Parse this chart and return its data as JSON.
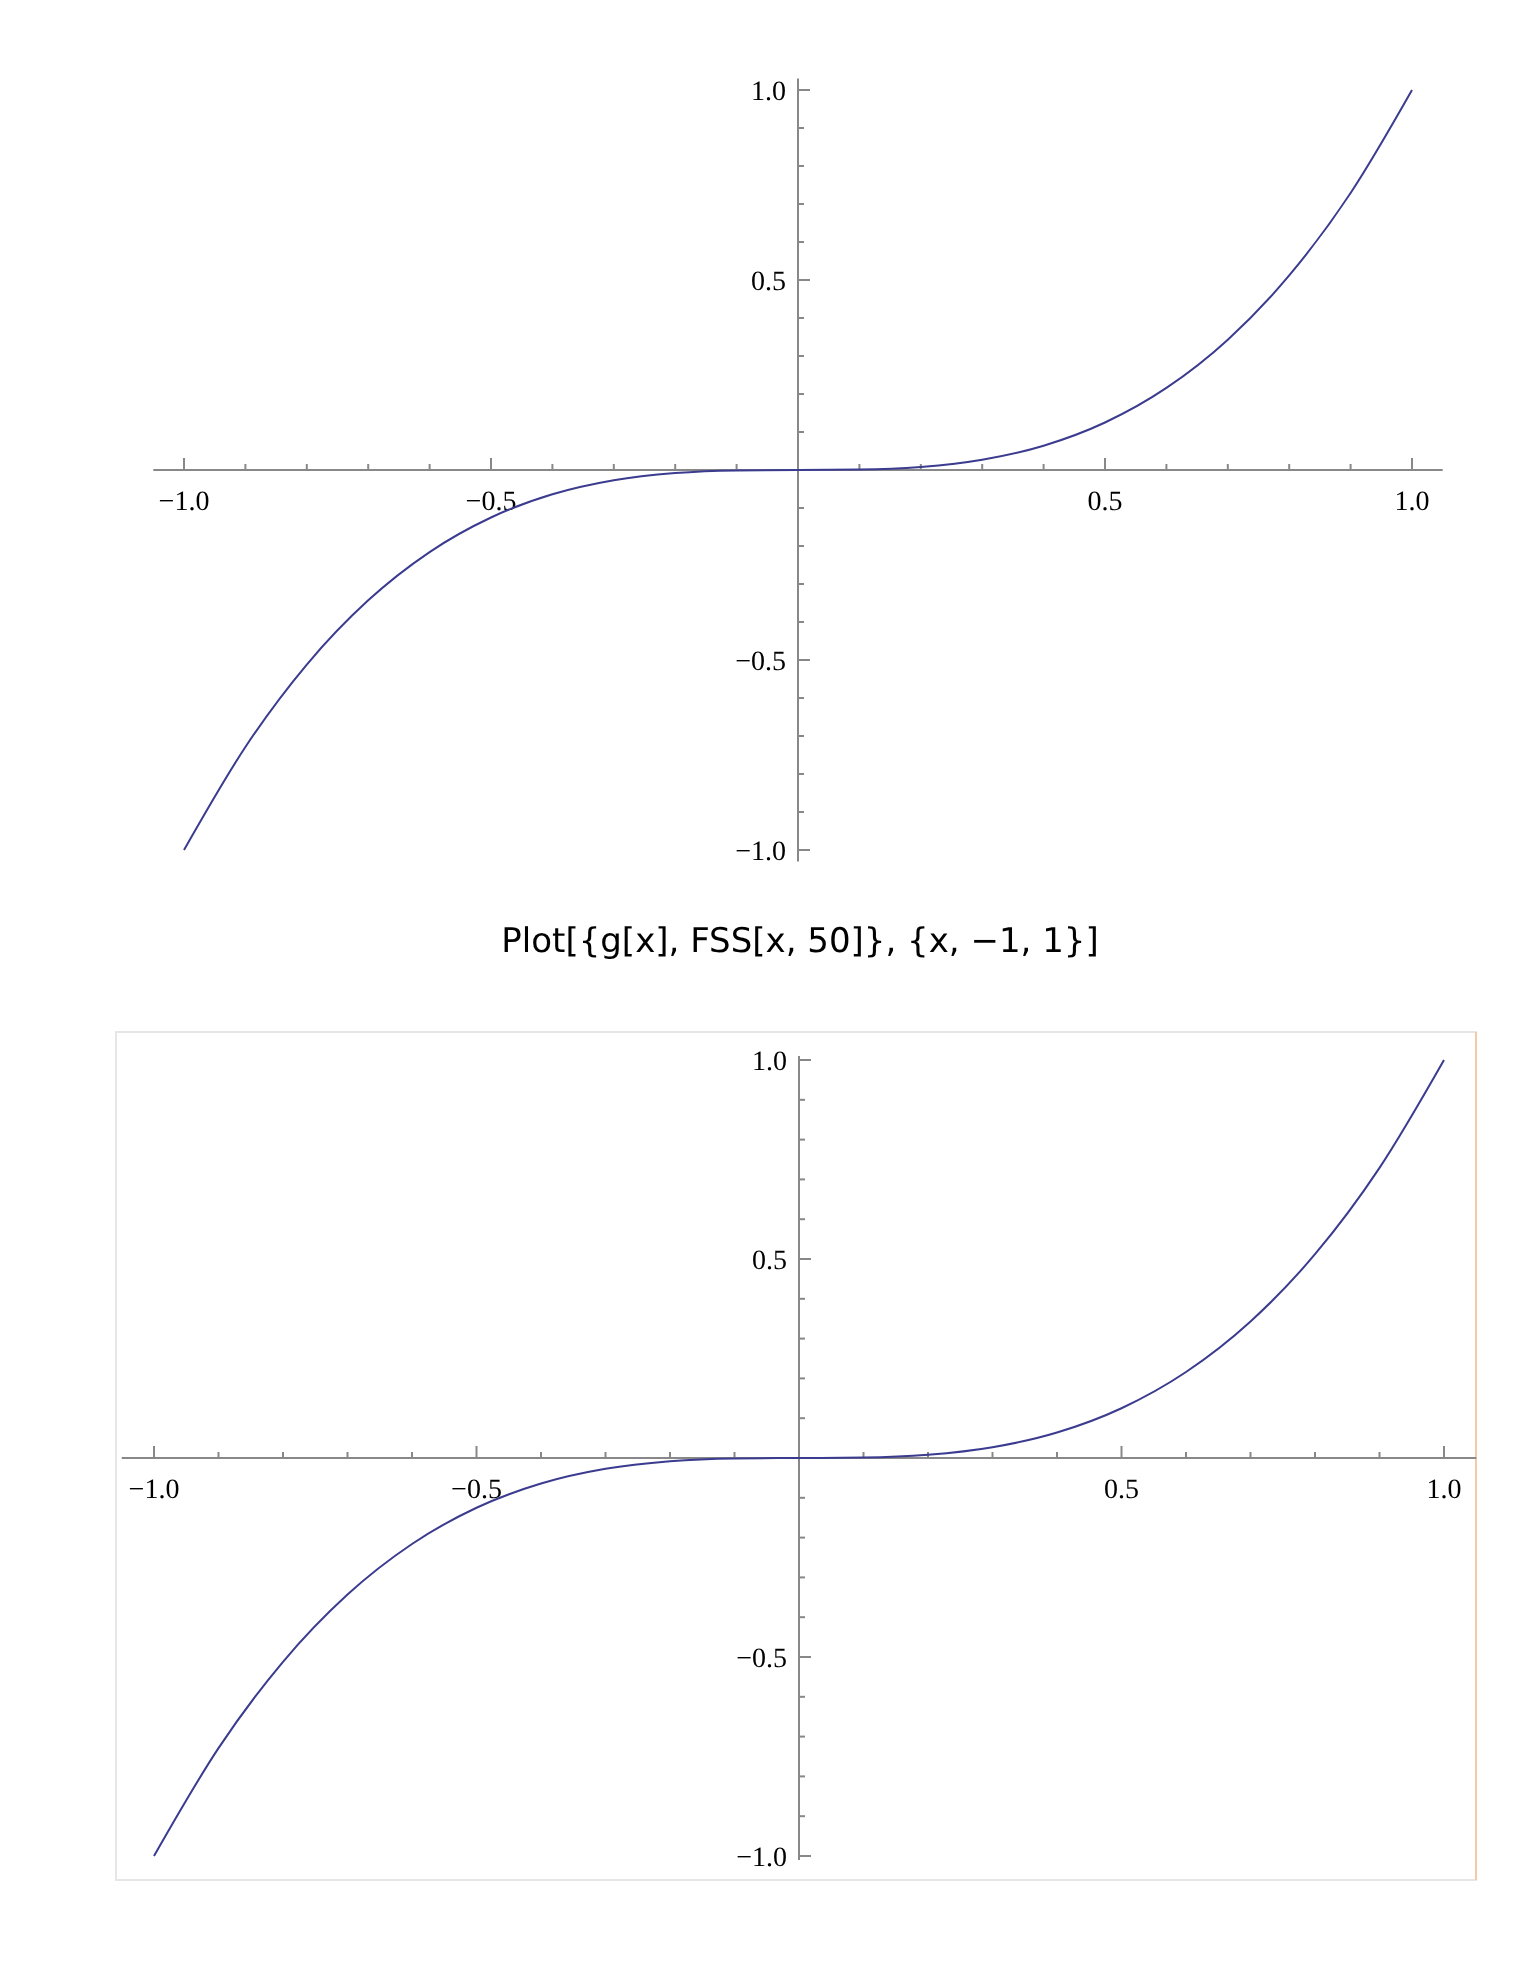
{
  "chart_data": [
    {
      "type": "line",
      "x": [
        -1,
        -0.9,
        -0.8,
        -0.7,
        -0.6,
        -0.5,
        -0.4,
        -0.3,
        -0.2,
        -0.1,
        0,
        0.1,
        0.2,
        0.3,
        0.4,
        0.5,
        0.6,
        0.7,
        0.8,
        0.9,
        1
      ],
      "series": [
        {
          "color": "#3b3b8f",
          "values": [
            -1,
            -0.729,
            -0.512,
            -0.343,
            -0.216,
            -0.125,
            -0.064,
            -0.027,
            -0.008,
            -0.001,
            0,
            0.001,
            0.008,
            0.027,
            0.064,
            0.125,
            0.216,
            0.343,
            0.512,
            0.729,
            1
          ]
        }
      ],
      "xlim": [
        -1.05,
        1.05
      ],
      "ylim": [
        -1.03,
        1.03
      ],
      "xticks": [
        {
          "value": -1,
          "label": "−1.0"
        },
        {
          "value": -0.9,
          "label": null
        },
        {
          "value": -0.8,
          "label": null
        },
        {
          "value": -0.7,
          "label": null
        },
        {
          "value": -0.6,
          "label": null
        },
        {
          "value": -0.5,
          "label": "−0.5"
        },
        {
          "value": -0.4,
          "label": null
        },
        {
          "value": -0.3,
          "label": null
        },
        {
          "value": -0.2,
          "label": null
        },
        {
          "value": -0.1,
          "label": null
        },
        {
          "value": 0.1,
          "label": null
        },
        {
          "value": 0.2,
          "label": null
        },
        {
          "value": 0.3,
          "label": null
        },
        {
          "value": 0.4,
          "label": null
        },
        {
          "value": 0.5,
          "label": "0.5"
        },
        {
          "value": 0.6,
          "label": null
        },
        {
          "value": 0.7,
          "label": null
        },
        {
          "value": 0.8,
          "label": null
        },
        {
          "value": 0.9,
          "label": null
        },
        {
          "value": 1,
          "label": "1.0"
        }
      ],
      "yticks": [
        {
          "value": -1,
          "label": "−1.0"
        },
        {
          "value": -0.9,
          "label": null
        },
        {
          "value": -0.8,
          "label": null
        },
        {
          "value": -0.7,
          "label": null
        },
        {
          "value": -0.6,
          "label": null
        },
        {
          "value": -0.5,
          "label": "−0.5"
        },
        {
          "value": -0.4,
          "label": null
        },
        {
          "value": -0.3,
          "label": null
        },
        {
          "value": -0.2,
          "label": null
        },
        {
          "value": -0.1,
          "label": null
        },
        {
          "value": 0.1,
          "label": null
        },
        {
          "value": 0.2,
          "label": null
        },
        {
          "value": 0.3,
          "label": null
        },
        {
          "value": 0.4,
          "label": null
        },
        {
          "value": 0.5,
          "label": "0.5"
        },
        {
          "value": 0.6,
          "label": null
        },
        {
          "value": 0.7,
          "label": null
        },
        {
          "value": 0.8,
          "label": null
        },
        {
          "value": 0.9,
          "label": null
        },
        {
          "value": 1,
          "label": "1.0"
        }
      ],
      "grid": false
    },
    {
      "type": "line",
      "title": "Plot[{g[x], FSS[x, 50]}, {x, −1, 1}]",
      "x": [
        -1,
        -0.9,
        -0.8,
        -0.7,
        -0.6,
        -0.5,
        -0.4,
        -0.3,
        -0.2,
        -0.1,
        0,
        0.1,
        0.2,
        0.3,
        0.4,
        0.5,
        0.6,
        0.7,
        0.8,
        0.9,
        1
      ],
      "series": [
        {
          "color": "#3b3b8f",
          "values": [
            -1,
            -0.729,
            -0.512,
            -0.343,
            -0.216,
            -0.125,
            -0.064,
            -0.027,
            -0.008,
            -0.001,
            0,
            0.001,
            0.008,
            0.027,
            0.064,
            0.125,
            0.216,
            0.343,
            0.512,
            0.729,
            1
          ]
        }
      ],
      "xlim": [
        -1.05,
        1.05
      ],
      "ylim": [
        -1.01,
        1.01
      ],
      "xticks": [
        {
          "value": -1,
          "label": "−1.0"
        },
        {
          "value": -0.9,
          "label": null
        },
        {
          "value": -0.8,
          "label": null
        },
        {
          "value": -0.7,
          "label": null
        },
        {
          "value": -0.6,
          "label": null
        },
        {
          "value": -0.5,
          "label": "−0.5"
        },
        {
          "value": -0.4,
          "label": null
        },
        {
          "value": -0.3,
          "label": null
        },
        {
          "value": -0.2,
          "label": null
        },
        {
          "value": -0.1,
          "label": null
        },
        {
          "value": 0.1,
          "label": null
        },
        {
          "value": 0.2,
          "label": null
        },
        {
          "value": 0.3,
          "label": null
        },
        {
          "value": 0.4,
          "label": null
        },
        {
          "value": 0.5,
          "label": "0.5"
        },
        {
          "value": 0.6,
          "label": null
        },
        {
          "value": 0.7,
          "label": null
        },
        {
          "value": 0.8,
          "label": null
        },
        {
          "value": 0.9,
          "label": null
        },
        {
          "value": 1,
          "label": "1.0"
        }
      ],
      "yticks": [
        {
          "value": -1,
          "label": "−1.0"
        },
        {
          "value": -0.9,
          "label": null
        },
        {
          "value": -0.8,
          "label": null
        },
        {
          "value": -0.7,
          "label": null
        },
        {
          "value": -0.6,
          "label": null
        },
        {
          "value": -0.5,
          "label": "−0.5"
        },
        {
          "value": -0.4,
          "label": null
        },
        {
          "value": -0.3,
          "label": null
        },
        {
          "value": -0.2,
          "label": null
        },
        {
          "value": -0.1,
          "label": null
        },
        {
          "value": 0.1,
          "label": null
        },
        {
          "value": 0.2,
          "label": null
        },
        {
          "value": 0.3,
          "label": null
        },
        {
          "value": 0.4,
          "label": null
        },
        {
          "value": 0.5,
          "label": "0.5"
        },
        {
          "value": 0.6,
          "label": null
        },
        {
          "value": 0.7,
          "label": null
        },
        {
          "value": 0.8,
          "label": null
        },
        {
          "value": 0.9,
          "label": null
        },
        {
          "value": 1,
          "label": "1.0"
        }
      ],
      "grid": false
    }
  ]
}
